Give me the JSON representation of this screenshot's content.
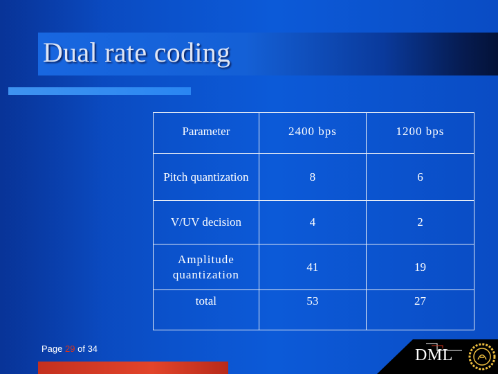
{
  "slide": {
    "title": "Dual rate coding",
    "page_label_prefix": "Page",
    "page_current": "29",
    "page_label_of": "of",
    "page_total": "34"
  },
  "table": {
    "header": [
      "Parameter",
      "2400 bps",
      "1200 bps"
    ],
    "rows": [
      [
        "Pitch quantization",
        "8",
        "6"
      ],
      [
        "V/UV decision",
        "4",
        "2"
      ],
      [
        "Amplitude quantization",
        "41",
        "19"
      ],
      [
        "total",
        "53",
        "27"
      ]
    ]
  },
  "logo": {
    "text": "DML"
  },
  "colors": {
    "background": "#0b52cc",
    "title_text": "#dfe6f5",
    "accent_bar": "#3f93f0",
    "bottom_bar": "#e2442a",
    "page_current": "#d6341c",
    "table_border": "#e6ebf5"
  }
}
